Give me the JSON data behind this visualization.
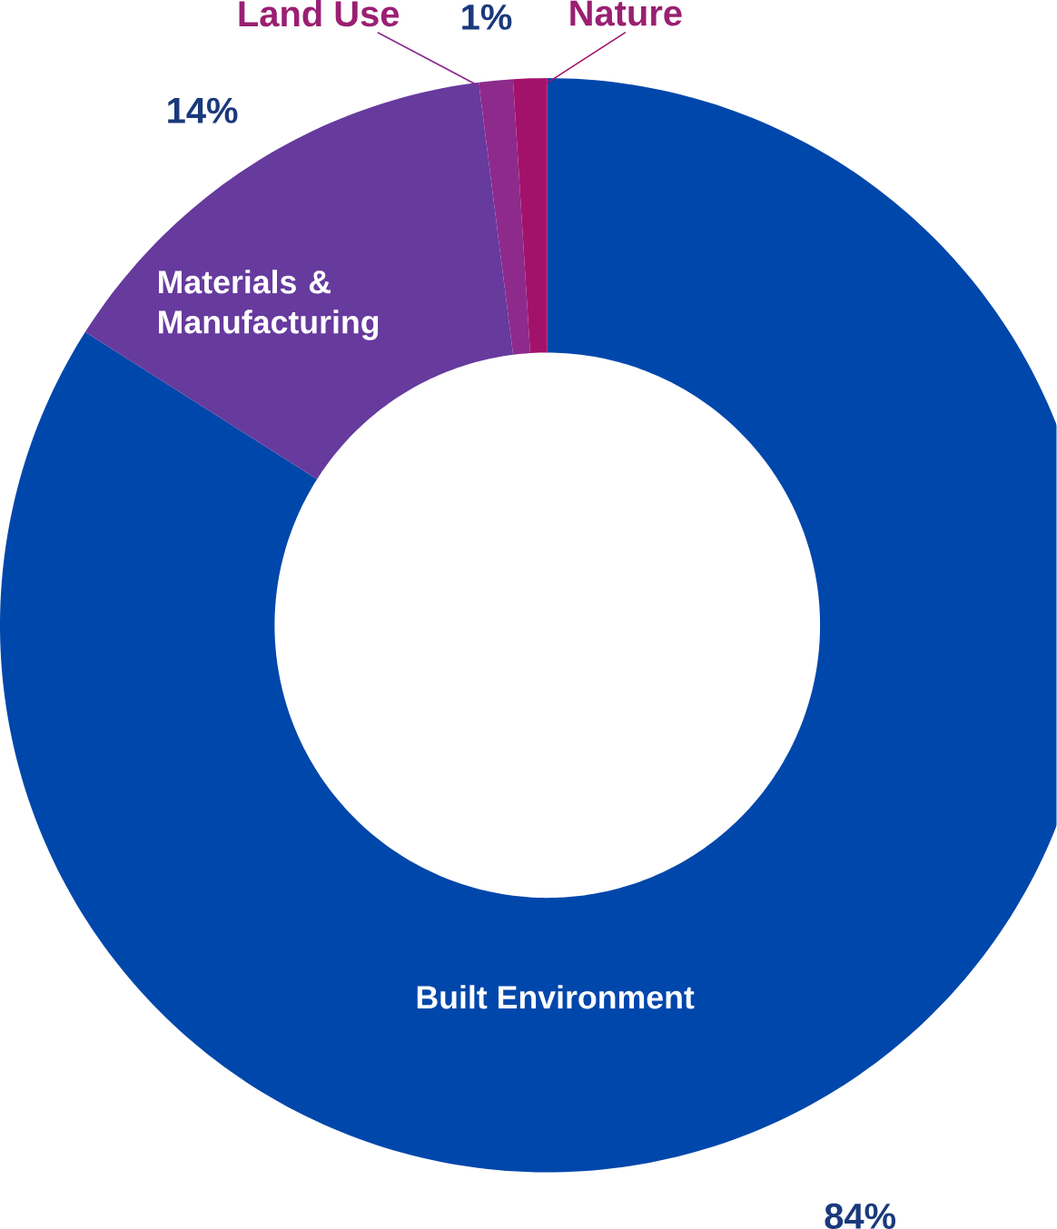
{
  "chart_data": {
    "type": "donut",
    "categories": [
      "Built Environment",
      "Materials & Manufacturing",
      "Land Use",
      "Nature"
    ],
    "values": [
      84,
      14,
      1,
      1
    ],
    "colors": [
      "#0047ab",
      "#673a9e",
      "#8e2a8c",
      "#a3126a"
    ],
    "value_labels": [
      "84%",
      "14%",
      "1%",
      null
    ]
  }
}
